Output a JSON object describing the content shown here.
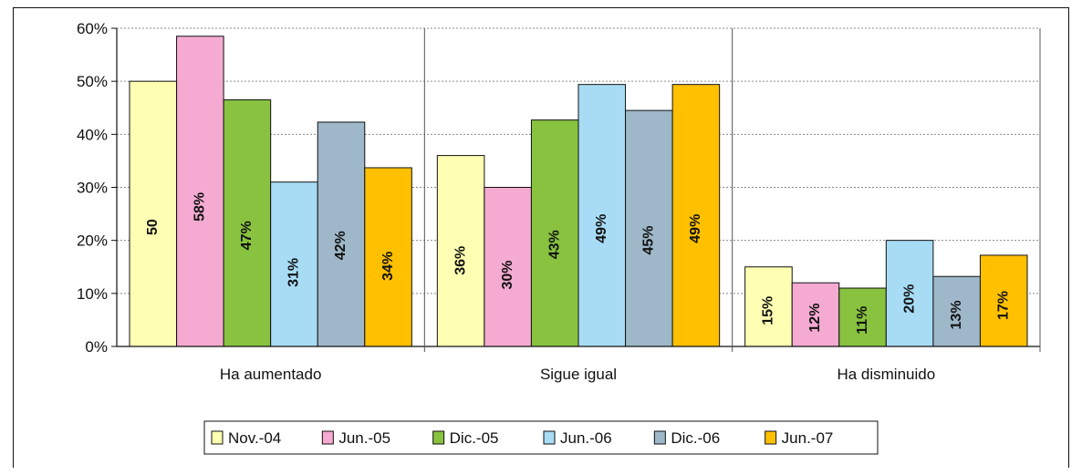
{
  "chart_data": {
    "type": "bar",
    "categories": [
      "Ha aumentado",
      "Sigue igual",
      "Ha disminuido"
    ],
    "series": [
      {
        "name": "Nov.-04",
        "color": "#ffffb3",
        "values": [
          50,
          36,
          15
        ],
        "labels": [
          "50",
          "36%",
          "15%"
        ]
      },
      {
        "name": "Jun.-05",
        "color": "#f4aad1",
        "values": [
          58.5,
          30,
          12
        ],
        "labels": [
          "58%",
          "30%",
          "12%"
        ]
      },
      {
        "name": "Dic.-05",
        "color": "#88c23f",
        "values": [
          46.5,
          42.7,
          11
        ],
        "labels": [
          "47%",
          "43%",
          "11%"
        ]
      },
      {
        "name": "Jun.-06",
        "color": "#a8dcf5",
        "values": [
          31,
          49.4,
          20
        ],
        "labels": [
          "31%",
          "49%",
          "20%"
        ]
      },
      {
        "name": "Dic.-06",
        "color": "#9fb8c9",
        "values": [
          42.3,
          44.5,
          13.2
        ],
        "labels": [
          "42%",
          "45%",
          "13%"
        ]
      },
      {
        "name": "Jun.-07",
        "color": "#ffc000",
        "values": [
          33.7,
          49.4,
          17.2
        ],
        "labels": [
          "34%",
          "49%",
          "17%"
        ]
      }
    ],
    "yticks": [
      "0%",
      "10%",
      "20%",
      "30%",
      "40%",
      "50%",
      "60%"
    ],
    "ylim": [
      0,
      60
    ],
    "grid": true,
    "legend": "bottom"
  }
}
